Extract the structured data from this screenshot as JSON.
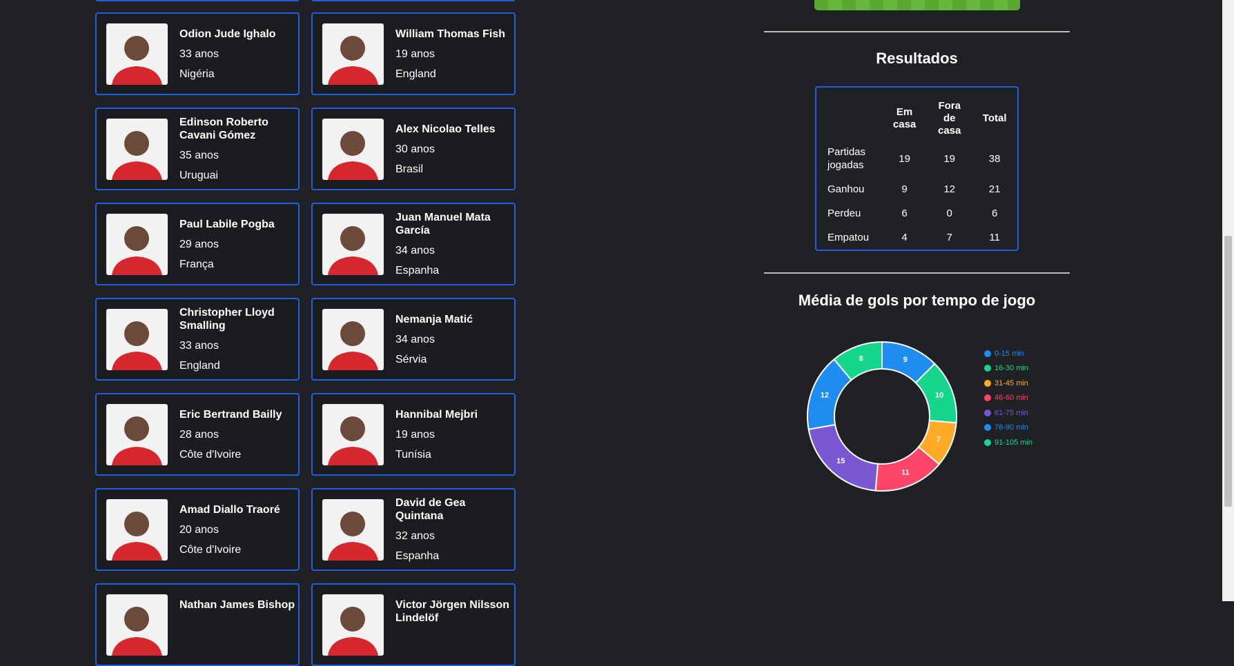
{
  "players": [
    {
      "name": "Odion Jude Ighalo",
      "age": "33 anos",
      "country": "Nigéria"
    },
    {
      "name": "William Thomas Fish",
      "age": "19 anos",
      "country": "England"
    },
    {
      "name": "Edinson Roberto Cavani Gómez",
      "age": "35 anos",
      "country": "Uruguai"
    },
    {
      "name": "Alex Nicolao Telles",
      "age": "30 anos",
      "country": "Brasil"
    },
    {
      "name": "Paul Labile Pogba",
      "age": "29 anos",
      "country": "França"
    },
    {
      "name": "Juan Manuel Mata García",
      "age": "34 anos",
      "country": "Espanha"
    },
    {
      "name": "Christopher Lloyd Smalling",
      "age": "33 anos",
      "country": "England"
    },
    {
      "name": "Nemanja Matić",
      "age": "34 anos",
      "country": "Sérvia"
    },
    {
      "name": "Eric Bertrand Bailly",
      "age": "28 anos",
      "country": "Côte d'Ivoire"
    },
    {
      "name": "Hannibal Mejbri",
      "age": "19 anos",
      "country": "Tunísia"
    },
    {
      "name": "Amad Diallo Traoré",
      "age": "20 anos",
      "country": "Côte d'Ivoire"
    },
    {
      "name": "David de Gea Quintana",
      "age": "32 anos",
      "country": "Espanha"
    },
    {
      "name": "Nathan James Bishop"
    },
    {
      "name": "Victor Jörgen Nilsson Lindelöf"
    }
  ],
  "results": {
    "title": "Resultados",
    "columns": [
      "Em casa",
      "Fora de casa",
      "Total"
    ],
    "rows": [
      {
        "label": "Partidas jogadas",
        "values": [
          19,
          19,
          38
        ]
      },
      {
        "label": "Ganhou",
        "values": [
          9,
          12,
          21
        ]
      },
      {
        "label": "Perdeu",
        "values": [
          6,
          0,
          6
        ]
      },
      {
        "label": "Empatou",
        "values": [
          4,
          7,
          11
        ]
      }
    ]
  },
  "chart_data": {
    "type": "pie",
    "donut": true,
    "title": "Média de gols por tempo de jogo",
    "categories": [
      "0-15 min",
      "16-30 min",
      "31-45 min",
      "46-60 min",
      "61-75 min",
      "76-90 min",
      "91-105 min"
    ],
    "values": [
      9,
      10,
      7,
      11,
      15,
      12,
      8
    ],
    "colors": [
      "#1e8cf0",
      "#16d68c",
      "#ffab26",
      "#ff4468",
      "#7a58d4",
      "#1e8cf0",
      "#16d68c"
    ]
  }
}
